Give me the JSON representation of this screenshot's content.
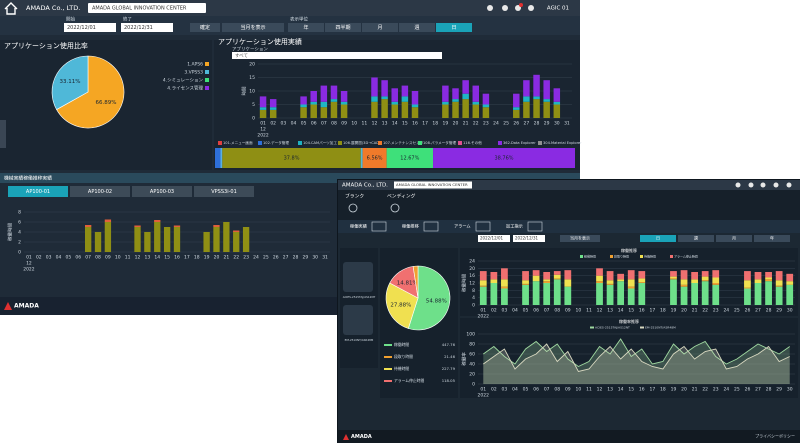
{
  "window1": {
    "header": {
      "company": "AMADA Co., LTD.",
      "site": "AMADA GLOBAL INNOVATION CENTER",
      "user": "AGIC 01"
    },
    "filters": {
      "start_label": "開始",
      "start": "2022/12/01",
      "end_label": "終了",
      "end": "2022/12/31",
      "confirm": "確定",
      "current_month": "当月を表示",
      "period_label": "表示単位",
      "periods": [
        "年",
        "四半期",
        "月",
        "週",
        "日"
      ],
      "active_period": 4
    },
    "usage_ratio": {
      "type": "pie",
      "title": "アプリケーション使用比率",
      "values": [
        66.89,
        33.11
      ],
      "value_labels": [
        "66.89%",
        "33.11%"
      ],
      "colors": [
        "#f5a623",
        "#4fb8d8"
      ],
      "legend": [
        "1.APS6",
        "3.VPSS3",
        "4.シミュレーション",
        "4.ライセンス管理"
      ],
      "legend_colors": [
        "#f5a623",
        "#4fb8d8",
        "#3ee07a",
        "#8a2be2"
      ]
    },
    "usage_results": {
      "type": "bar",
      "title": "アプリケーション使用実績",
      "filter_label": "アプリケーション",
      "filter_value": "すべて",
      "y_label": "時間",
      "month": "12",
      "year": "2022",
      "categories": [
        "01",
        "02",
        "03",
        "04",
        "05",
        "06",
        "07",
        "08",
        "09",
        "10",
        "11",
        "12",
        "13",
        "14",
        "15",
        "16",
        "17",
        "18",
        "19",
        "20",
        "21",
        "22",
        "23",
        "24",
        "25",
        "26",
        "27",
        "28",
        "29",
        "30",
        "31"
      ],
      "series": [
        {
          "color": "#8f8f14",
          "values": [
            3,
            3,
            0,
            0,
            4,
            5,
            4,
            6,
            5,
            0,
            0,
            6,
            7,
            5,
            6,
            4,
            0,
            0,
            5,
            6,
            7,
            5,
            4,
            0,
            0,
            3,
            6,
            7,
            6,
            5,
            0
          ]
        },
        {
          "color": "#1fb5c4",
          "values": [
            1,
            1,
            0,
            0,
            1,
            1,
            2,
            1,
            1,
            0,
            0,
            2,
            1,
            1,
            2,
            1,
            0,
            0,
            1,
            1,
            2,
            1,
            1,
            0,
            0,
            1,
            2,
            1,
            1,
            1,
            0
          ]
        },
        {
          "color": "#8a2be2",
          "values": [
            4,
            3,
            0,
            0,
            3,
            4,
            6,
            5,
            4,
            0,
            0,
            7,
            6,
            5,
            4,
            5,
            0,
            0,
            6,
            4,
            5,
            6,
            4,
            0,
            0,
            5,
            6,
            8,
            7,
            5,
            0
          ]
        }
      ],
      "ylim": [
        0,
        20
      ],
      "yticks": [
        0,
        5,
        10,
        15,
        20
      ]
    },
    "app_legend": [
      {
        "name": "101.メニュー画面",
        "color": "#e04040"
      },
      {
        "name": "102.データ管理",
        "color": "#2e6fd8"
      },
      {
        "name": "104.CAMパーツ加工",
        "color": "#20b0c0"
      },
      {
        "name": "106.展開図(3D→CAD)",
        "color": "#8f8f14"
      },
      {
        "name": "107.メンテナンスセンタ",
        "color": "#f07a2a"
      },
      {
        "name": "108.パラメータ管理",
        "color": "#3ee07a"
      },
      {
        "name": "116.その他",
        "color": "#e05090"
      },
      {
        "name": "362.Data Explorer",
        "color": "#8a2be2"
      },
      {
        "name": "304.Material Explorer",
        "color": "#909090"
      }
    ],
    "app_share": {
      "type": "hbar",
      "values": [
        1.5,
        0.5,
        37.8,
        0.5,
        6.56,
        12.67,
        38.76
      ],
      "value_labels": [
        null,
        null,
        "37.8%",
        null,
        "6.56%",
        "12.67%",
        "38.76%"
      ],
      "colors": [
        "#2e6fd8",
        "#5ab0e0",
        "#8f8f14",
        "#4fb8d8",
        "#f07a2a",
        "#3ee07a",
        "#8a2be2"
      ]
    },
    "machine_section": {
      "title": "機械実績稼働推移実績",
      "tabs": [
        "AP100-01",
        "AP100-02",
        "AP100-03",
        "VPSS3i-01"
      ],
      "active_tab": 0
    },
    "machine_chart": {
      "type": "bar",
      "y_label": "稼働時間",
      "month": "12",
      "year": "2022",
      "categories": [
        "01",
        "02",
        "03",
        "04",
        "05",
        "06",
        "07",
        "08",
        "09",
        "10",
        "11",
        "12",
        "13",
        "14",
        "15",
        "16",
        "17",
        "18",
        "19",
        "20",
        "21",
        "22",
        "23",
        "24",
        "25",
        "26",
        "27",
        "28",
        "29",
        "30",
        "31"
      ],
      "series": [
        {
          "color": "#8f8f14",
          "values": [
            0,
            0,
            0,
            0,
            0,
            0,
            5,
            4,
            6,
            0,
            0,
            5,
            4,
            6,
            5,
            5,
            0,
            0,
            4,
            5,
            6,
            4,
            5,
            0,
            0,
            0,
            0,
            0,
            0,
            0,
            0
          ]
        },
        {
          "color": "#e0603a",
          "values": [
            0,
            0,
            0,
            0,
            0,
            0,
            0.4,
            0,
            0.5,
            0,
            0,
            0.3,
            0,
            0.4,
            0,
            0.3,
            0,
            0,
            0,
            0.4,
            0,
            0.3,
            0,
            0,
            0,
            0,
            0,
            0,
            0,
            0,
            0
          ]
        }
      ],
      "ylim": [
        0,
        8
      ],
      "yticks": [
        0,
        2,
        4,
        6,
        8
      ]
    },
    "footer_logo": "AMADA"
  },
  "window2": {
    "header": {
      "company": "AMADA Co., LTD.",
      "site": "AMADA GLOBAL INNOVATION CENTER"
    },
    "nav": [
      "ブランク",
      "ベンディング"
    ],
    "toolbar": [
      "稼働実績",
      "稼働推移",
      "アラーム",
      "加工指示"
    ],
    "machines": [
      "ACIES-2515TAJ/AS12NT",
      "EM-2510NT/ASR48M"
    ],
    "filters": {
      "start": "2022/12/01",
      "end": "2022/12/31",
      "current_month": "当月を表示",
      "periods": [
        "日",
        "週",
        "月",
        "年"
      ],
      "active_period": 0
    },
    "ratio": {
      "type": "pie",
      "values": [
        54.88,
        27.88,
        14.81,
        2.43
      ],
      "value_labels": [
        "54.88%",
        "27.88%",
        "14.81%",
        null
      ],
      "colors": [
        "#6ee08a",
        "#f0e050",
        "#f07070",
        "#f0a030"
      ]
    },
    "ratio_list": [
      {
        "name": "稼働時間",
        "value": 447.76,
        "color": "#6ee08a"
      },
      {
        "name": "段取り時間",
        "value": 21.46,
        "color": "#f0a030"
      },
      {
        "name": "待機時間",
        "value": 227.79,
        "color": "#f0e050"
      },
      {
        "name": "アラーム停止時間",
        "value": 118.05,
        "color": "#f07070"
      }
    ],
    "trend": {
      "type": "bar",
      "title": "稼働推移",
      "y_label": "稼働時間",
      "year": "2022",
      "categories": [
        "01",
        "02",
        "03",
        "04",
        "05",
        "06",
        "07",
        "08",
        "09",
        "10",
        "11",
        "12",
        "13",
        "14",
        "15",
        "16",
        "17",
        "18",
        "19",
        "20",
        "21",
        "22",
        "23",
        "24",
        "25",
        "26",
        "27",
        "28",
        "29",
        "30"
      ],
      "series": [
        {
          "name": "稼働時間",
          "color": "#6ee08a",
          "values": [
            10,
            12,
            9,
            0,
            11,
            13,
            12,
            14,
            10,
            0,
            0,
            12,
            11,
            13,
            9,
            12,
            0,
            0,
            14,
            10,
            12,
            13,
            11,
            0,
            0,
            9,
            12,
            13,
            10,
            11
          ]
        },
        {
          "name": "段取り時間",
          "color": "#f0a030",
          "values": [
            0.5,
            0,
            1,
            0,
            0.5,
            0,
            1,
            0.5,
            0,
            0,
            0,
            1,
            0.5,
            0,
            1,
            0.5,
            0,
            0,
            0.5,
            1,
            0,
            0.5,
            1,
            0,
            0,
            0.5,
            0,
            1,
            0.5,
            0
          ]
        },
        {
          "name": "待機時間",
          "color": "#f0e050",
          "values": [
            3,
            2,
            4,
            0,
            2,
            3,
            1,
            2,
            4,
            0,
            0,
            3,
            2,
            1,
            4,
            2,
            0,
            0,
            1,
            3,
            2,
            2,
            3,
            0,
            0,
            4,
            2,
            1,
            3,
            2
          ]
        },
        {
          "name": "アラーム停止時間",
          "color": "#f07070",
          "values": [
            5,
            4,
            6,
            0,
            5,
            3,
            4,
            2,
            5,
            0,
            0,
            4,
            5,
            3,
            5,
            4,
            0,
            0,
            3,
            5,
            4,
            3,
            4,
            0,
            0,
            5,
            4,
            3,
            5,
            4
          ]
        }
      ],
      "ylim": [
        0,
        24
      ],
      "yticks": [
        0,
        4,
        8,
        12,
        16,
        20,
        24
      ]
    },
    "rate": {
      "type": "line",
      "title": "稼働率推移",
      "y_label": "稼働率",
      "year": "2022",
      "categories": [
        "01",
        "02",
        "03",
        "04",
        "05",
        "06",
        "07",
        "08",
        "09",
        "10",
        "11",
        "12",
        "13",
        "14",
        "15",
        "16",
        "17",
        "18",
        "19",
        "20",
        "21",
        "22",
        "23",
        "24",
        "25",
        "26",
        "27",
        "28",
        "29",
        "30"
      ],
      "series": [
        {
          "name": "ACIES-2515TAJ/AS12NT",
          "color": "#9fd8a0",
          "values": [
            60,
            75,
            55,
            40,
            70,
            85,
            65,
            80,
            50,
            35,
            45,
            75,
            60,
            90,
            55,
            70,
            40,
            45,
            80,
            60,
            75,
            85,
            55,
            40,
            50,
            65,
            80,
            70,
            60,
            75
          ]
        },
        {
          "name": "EM-2510NT/ASR48M",
          "color": "#d8d8c0",
          "values": [
            40,
            55,
            70,
            30,
            50,
            60,
            80,
            45,
            65,
            25,
            30,
            55,
            75,
            50,
            70,
            45,
            35,
            30,
            60,
            75,
            50,
            65,
            70,
            30,
            35,
            50,
            60,
            75,
            45,
            55
          ]
        }
      ],
      "ylim": [
        0,
        100
      ],
      "yticks": [
        0,
        20,
        40,
        60,
        80,
        100
      ]
    },
    "footer_logo": "AMADA",
    "privacy": "プライバシーポリシー"
  }
}
